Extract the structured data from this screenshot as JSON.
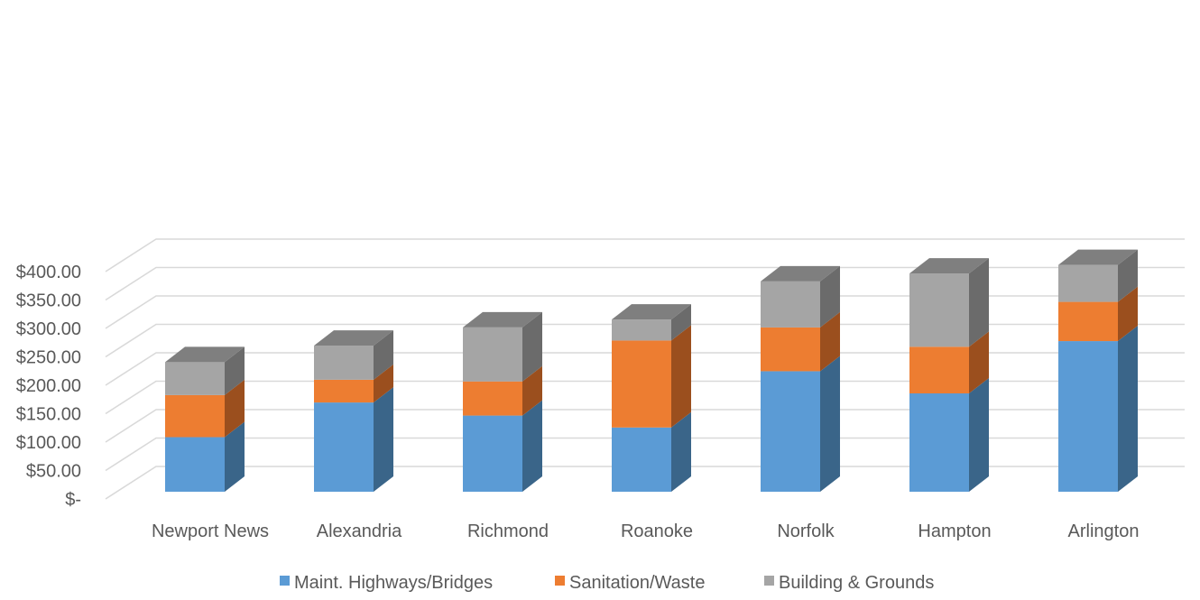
{
  "chart_data": {
    "type": "bar",
    "stacked": true,
    "style": "3d-stacked-column",
    "categories": [
      "Newport News",
      "Alexandria",
      "Richmond",
      "Roanoke",
      "Norfolk",
      "Hampton",
      "Arlington"
    ],
    "series": [
      {
        "name": "Maint. Highways/Bridges",
        "values": [
          96,
          157,
          134,
          113,
          212,
          173,
          265
        ]
      },
      {
        "name": "Sanitation/Waste",
        "values": [
          74,
          40,
          60,
          153,
          77,
          82,
          69
        ]
      },
      {
        "name": "Building & Grounds",
        "values": [
          58,
          60,
          95,
          37,
          81,
          129,
          65
        ]
      }
    ],
    "ylim": [
      0,
      400
    ],
    "yticks": [
      0,
      50,
      100,
      150,
      200,
      250,
      300,
      350,
      400
    ],
    "ytick_labels": [
      "$-",
      "$50.00",
      "$100.00",
      "$150.00",
      "$200.00",
      "$250.00",
      "$300.00",
      "$350.00",
      "$400.00"
    ],
    "title": "",
    "xlabel": "",
    "ylabel": "",
    "grid": true,
    "legend_position": "bottom",
    "colors": {
      "series_front": [
        "#5b9bd5",
        "#ed7d31",
        "#a5a5a5"
      ],
      "series_side": [
        "#3a6589",
        "#9b4f1e",
        "#6b6b6b"
      ],
      "series_top": [
        "#4f86b8",
        "#c9692a",
        "#7f7f7f"
      ],
      "grid": "#d9d9d9",
      "text": "#595959"
    }
  }
}
